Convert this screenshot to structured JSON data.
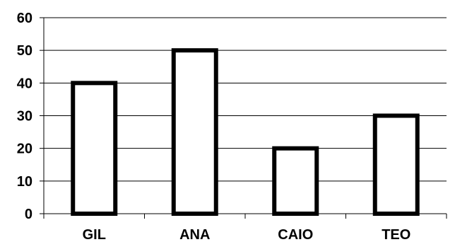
{
  "chart_data": {
    "type": "bar",
    "title": "",
    "xlabel": "",
    "ylabel": "",
    "categories": [
      "GIL",
      "ANA",
      "CAIO",
      "TEO"
    ],
    "values": [
      40,
      50,
      20,
      30
    ],
    "ylim": [
      0,
      60
    ],
    "yticks": [
      "0",
      "10",
      "20",
      "30",
      "40",
      "50",
      "60"
    ],
    "grid": true,
    "legend": "none",
    "colors": {
      "bar_fill": "#ffffff",
      "bar_stroke": "#000000",
      "grid": "#000000",
      "text": "#000000"
    }
  }
}
